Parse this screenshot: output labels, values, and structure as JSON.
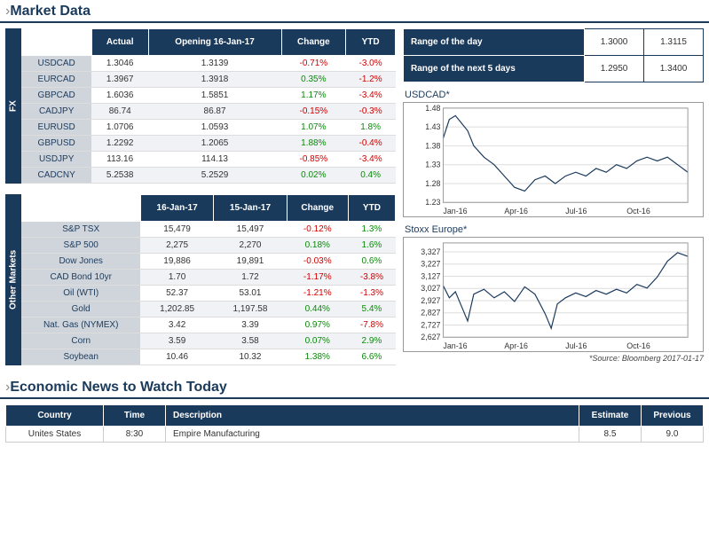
{
  "titles": {
    "market_data": "Market Data",
    "economic_news": "Economic News to Watch Today"
  },
  "fx_table": {
    "side_label": "FX",
    "headers": [
      "",
      "Actual",
      "Opening 16-Jan-17",
      "Change",
      "YTD"
    ],
    "rows": [
      {
        "label": "USDCAD",
        "actual": "1.3046",
        "open": "1.3139",
        "change": "-0.71%",
        "ytd": "-3.0%",
        "chg_sign": -1,
        "ytd_sign": -1
      },
      {
        "label": "EURCAD",
        "actual": "1.3967",
        "open": "1.3918",
        "change": "0.35%",
        "ytd": "-1.2%",
        "chg_sign": 1,
        "ytd_sign": -1
      },
      {
        "label": "GBPCAD",
        "actual": "1.6036",
        "open": "1.5851",
        "change": "1.17%",
        "ytd": "-3.4%",
        "chg_sign": 1,
        "ytd_sign": -1
      },
      {
        "label": "CADJPY",
        "actual": "86.74",
        "open": "86.87",
        "change": "-0.15%",
        "ytd": "-0.3%",
        "chg_sign": -1,
        "ytd_sign": -1
      },
      {
        "label": "EURUSD",
        "actual": "1.0706",
        "open": "1.0593",
        "change": "1.07%",
        "ytd": "1.8%",
        "chg_sign": 1,
        "ytd_sign": 1
      },
      {
        "label": "GBPUSD",
        "actual": "1.2292",
        "open": "1.2065",
        "change": "1.88%",
        "ytd": "-0.4%",
        "chg_sign": 1,
        "ytd_sign": -1
      },
      {
        "label": "USDJPY",
        "actual": "113.16",
        "open": "114.13",
        "change": "-0.85%",
        "ytd": "-3.4%",
        "chg_sign": -1,
        "ytd_sign": -1
      },
      {
        "label": "CADCNY",
        "actual": "5.2538",
        "open": "5.2529",
        "change": "0.02%",
        "ytd": "0.4%",
        "chg_sign": 1,
        "ytd_sign": 1
      }
    ]
  },
  "other_table": {
    "side_label": "Other Markets",
    "headers": [
      "",
      "16-Jan-17",
      "15-Jan-17",
      "Change",
      "YTD"
    ],
    "rows": [
      {
        "label": "S&P TSX",
        "actual": "15,479",
        "open": "15,497",
        "change": "-0.12%",
        "ytd": "1.3%",
        "chg_sign": -1,
        "ytd_sign": 1
      },
      {
        "label": "S&P 500",
        "actual": "2,275",
        "open": "2,270",
        "change": "0.18%",
        "ytd": "1.6%",
        "chg_sign": 1,
        "ytd_sign": 1
      },
      {
        "label": "Dow Jones",
        "actual": "19,886",
        "open": "19,891",
        "change": "-0.03%",
        "ytd": "0.6%",
        "chg_sign": -1,
        "ytd_sign": 1
      },
      {
        "label": "CAD Bond 10yr",
        "actual": "1.70",
        "open": "1.72",
        "change": "-1.17%",
        "ytd": "-3.8%",
        "chg_sign": -1,
        "ytd_sign": -1
      },
      {
        "label": "Oil (WTI)",
        "actual": "52.37",
        "open": "53.01",
        "change": "-1.21%",
        "ytd": "-1.3%",
        "chg_sign": -1,
        "ytd_sign": -1
      },
      {
        "label": "Gold",
        "actual": "1,202.85",
        "open": "1,197.58",
        "change": "0.44%",
        "ytd": "5.4%",
        "chg_sign": 1,
        "ytd_sign": 1
      },
      {
        "label": "Nat. Gas (NYMEX)",
        "actual": "3.42",
        "open": "3.39",
        "change": "0.97%",
        "ytd": "-7.8%",
        "chg_sign": 1,
        "ytd_sign": -1
      },
      {
        "label": "Corn",
        "actual": "3.59",
        "open": "3.58",
        "change": "0.07%",
        "ytd": "2.9%",
        "chg_sign": 1,
        "ytd_sign": 1
      },
      {
        "label": "Soybean",
        "actual": "10.46",
        "open": "10.32",
        "change": "1.38%",
        "ytd": "6.6%",
        "chg_sign": 1,
        "ytd_sign": 1
      }
    ]
  },
  "range_table": {
    "rows": [
      {
        "label": "Range of the day",
        "low": "1.3000",
        "high": "1.3115"
      },
      {
        "label": "Range of the next 5 days",
        "low": "1.2950",
        "high": "1.3400"
      }
    ]
  },
  "chart1": {
    "title": "USDCAD*",
    "type": "line",
    "y_ticks": [
      1.23,
      1.28,
      1.33,
      1.38,
      1.43,
      1.48
    ],
    "x_labels": [
      "Jan-16",
      "Apr-16",
      "Jul-16",
      "Oct-16"
    ],
    "ylim": [
      1.23,
      1.48
    ],
    "xlim": [
      0,
      12
    ],
    "line_color": "#1a3a5c",
    "grid_color": "#dddddd",
    "background_color": "#ffffff",
    "data": [
      [
        0,
        1.4
      ],
      [
        0.3,
        1.45
      ],
      [
        0.6,
        1.46
      ],
      [
        0.9,
        1.44
      ],
      [
        1.2,
        1.42
      ],
      [
        1.5,
        1.38
      ],
      [
        2,
        1.35
      ],
      [
        2.5,
        1.33
      ],
      [
        3,
        1.3
      ],
      [
        3.5,
        1.27
      ],
      [
        4,
        1.26
      ],
      [
        4.5,
        1.29
      ],
      [
        5,
        1.3
      ],
      [
        5.5,
        1.28
      ],
      [
        6,
        1.3
      ],
      [
        6.5,
        1.31
      ],
      [
        7,
        1.3
      ],
      [
        7.5,
        1.32
      ],
      [
        8,
        1.31
      ],
      [
        8.5,
        1.33
      ],
      [
        9,
        1.32
      ],
      [
        9.5,
        1.34
      ],
      [
        10,
        1.35
      ],
      [
        10.5,
        1.34
      ],
      [
        11,
        1.35
      ],
      [
        11.5,
        1.33
      ],
      [
        12,
        1.31
      ]
    ]
  },
  "chart2": {
    "title": "Stoxx Europe*",
    "type": "line",
    "y_ticks": [
      2627,
      2727,
      2827,
      2927,
      3027,
      3127,
      3227,
      3327
    ],
    "x_labels": [
      "Jan-16",
      "Apr-16",
      "Jul-16",
      "Oct-16"
    ],
    "ylim": [
      2627,
      3400
    ],
    "xlim": [
      0,
      12
    ],
    "line_color": "#1a3a5c",
    "grid_color": "#dddddd",
    "background_color": "#ffffff",
    "data": [
      [
        0,
        3050
      ],
      [
        0.3,
        2950
      ],
      [
        0.6,
        3000
      ],
      [
        0.9,
        2880
      ],
      [
        1.2,
        2760
      ],
      [
        1.5,
        2980
      ],
      [
        2,
        3020
      ],
      [
        2.5,
        2950
      ],
      [
        3,
        3000
      ],
      [
        3.5,
        2920
      ],
      [
        4,
        3040
      ],
      [
        4.5,
        2980
      ],
      [
        5,
        2820
      ],
      [
        5.3,
        2700
      ],
      [
        5.6,
        2900
      ],
      [
        6,
        2950
      ],
      [
        6.5,
        2990
      ],
      [
        7,
        2960
      ],
      [
        7.5,
        3010
      ],
      [
        8,
        2980
      ],
      [
        8.5,
        3020
      ],
      [
        9,
        2990
      ],
      [
        9.5,
        3060
      ],
      [
        10,
        3030
      ],
      [
        10.5,
        3120
      ],
      [
        11,
        3250
      ],
      [
        11.5,
        3320
      ],
      [
        12,
        3290
      ]
    ]
  },
  "source": "*Source: Bloomberg  2017-01-17",
  "econ_table": {
    "headers": [
      "Country",
      "Time",
      "Description",
      "Estimate",
      "Previous"
    ],
    "rows": [
      {
        "country": "Unites States",
        "time": "8:30",
        "desc": "Empire Manufacturing",
        "estimate": "8.5",
        "previous": "9.0"
      }
    ]
  },
  "colors": {
    "header_bg": "#1a3a5c",
    "row_label_bg": "#d0d5dc",
    "neg": "#d00000",
    "pos": "#0a8a0a"
  }
}
